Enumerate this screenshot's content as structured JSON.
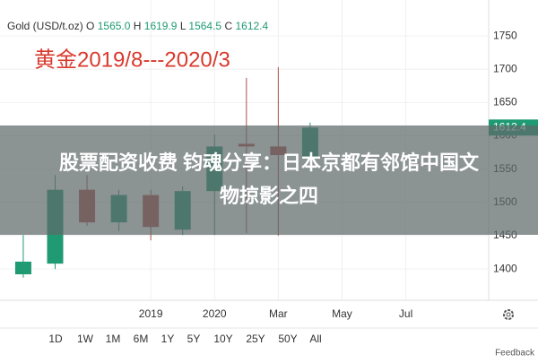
{
  "header": {
    "symbol": "Gold (USD/t.oz)",
    "fields": [
      {
        "label": "O",
        "value": "1565.0"
      },
      {
        "label": "H",
        "value": "1619.9"
      },
      {
        "label": "L",
        "value": "1564.5"
      },
      {
        "label": "C",
        "value": "1612.4"
      }
    ]
  },
  "chart_data": {
    "type": "candlestick",
    "annotation": "黄金2019/8---2020/3",
    "open": [
      1392,
      1408,
      1519,
      1470,
      1511,
      1459,
      1517,
      1588,
      1584,
      1565
    ],
    "high": [
      1451,
      1541,
      1541,
      1519,
      1519,
      1524,
      1602,
      1687,
      1703,
      1619.9
    ],
    "low": [
      1387,
      1400,
      1465,
      1457,
      1443,
      1451,
      1451,
      1454,
      1450,
      1564.5
    ],
    "close": [
      1411,
      1519,
      1470,
      1511,
      1463,
      1517,
      1584,
      1584,
      1571,
      1612.4
    ],
    "up_color": "#1f9a73",
    "down_color": "#b0504c",
    "xlim": [
      -0.73,
      14.6
    ],
    "xticks": [
      {
        "value": 4,
        "label": "2019"
      },
      {
        "value": 6,
        "label": "2020"
      },
      {
        "value": 8,
        "label": "Mar"
      },
      {
        "value": 10,
        "label": "May"
      },
      {
        "value": 12,
        "label": "Jul"
      }
    ],
    "ylim": [
      1353,
      1804
    ],
    "yticks": [
      1400,
      1450,
      1500,
      1550,
      1600,
      1650,
      1700,
      1750
    ],
    "grid": true
  },
  "overlay": {
    "lines": [
      "股票配资收费 钧魂分享：日本京都有邻馆中国文",
      "物掠影之四"
    ]
  },
  "ranges": [
    "1D",
    "1W",
    "1M",
    "6M",
    "1Y",
    "5Y",
    "10Y",
    "25Y",
    "50Y",
    "All"
  ],
  "feedback": "Feedback"
}
